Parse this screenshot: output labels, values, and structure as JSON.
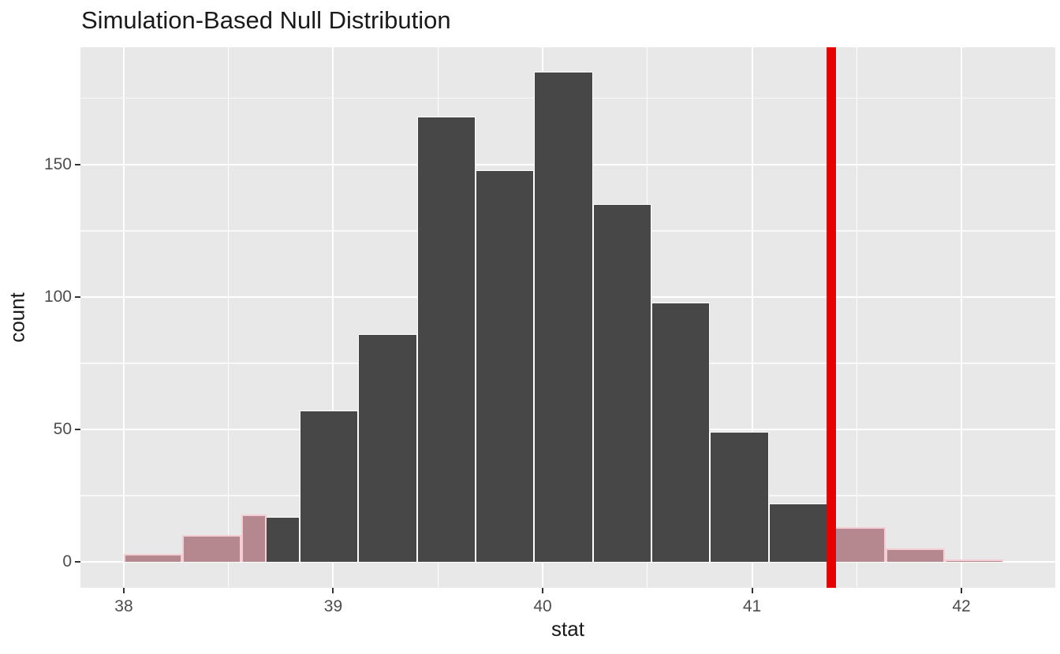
{
  "chart_data": {
    "type": "bar",
    "subtype": "histogram",
    "title": "Simulation-Based Null Distribution",
    "xlabel": "stat",
    "ylabel": "count",
    "x_ticks": [
      38,
      39,
      40,
      41,
      42
    ],
    "y_ticks": [
      0,
      50,
      100,
      150
    ],
    "xlim": [
      37.793,
      42.448
    ],
    "ylim": [
      -9.8,
      194.3
    ],
    "grid": "on",
    "null_histogram": {
      "bin_edges": [
        38.56,
        38.84,
        39.12,
        39.4,
        39.68,
        39.96,
        40.24,
        40.52,
        40.8,
        41.08,
        41.36
      ],
      "counts": [
        17,
        57,
        86,
        168,
        148,
        185,
        135,
        98,
        49,
        22
      ]
    },
    "shaded_tail_bars": [
      {
        "x0": 38.0,
        "x1": 38.28,
        "count": 3
      },
      {
        "x0": 38.28,
        "x1": 38.56,
        "count": 10
      },
      {
        "x0": 38.56,
        "x1": 38.68,
        "count": 18
      },
      {
        "x0": 41.36,
        "x1": 41.64,
        "count": 13
      },
      {
        "x0": 41.64,
        "x1": 41.92,
        "count": 5
      },
      {
        "x0": 41.92,
        "x1": 42.2,
        "count": 1
      }
    ],
    "observed_stat_line": {
      "x": 41.38
    }
  },
  "colors": {
    "panel_bg": "#e8e8e8",
    "grid_major": "#ffffff",
    "grid_minor": "#ffffff",
    "bar_fill": "#474747",
    "bar_border": "#ffffff",
    "shade_fill": "#b5888f",
    "shade_border": "#f5cdd5",
    "obs_line": "#e60000",
    "tick_label": "#4d4d4d",
    "text": "#1a1a1a"
  }
}
